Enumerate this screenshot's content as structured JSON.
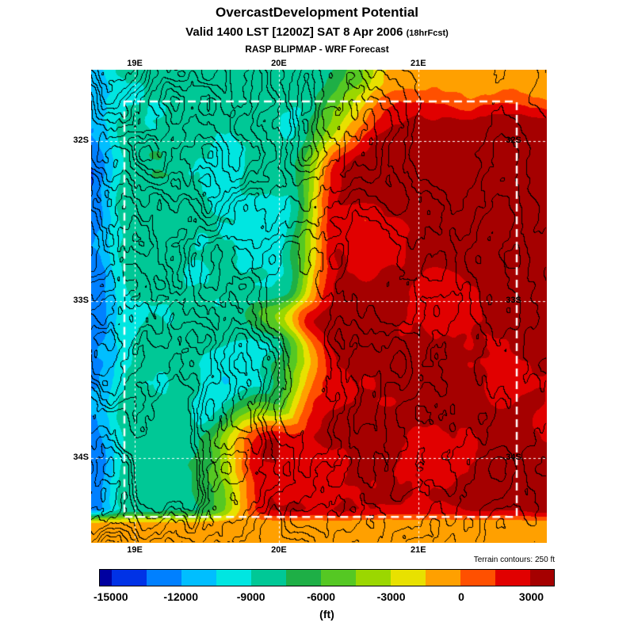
{
  "title": "OvercastDevelopment Potential",
  "valid_line": {
    "main": "Valid 1400 LST [1200Z] SAT 8 Apr 2006",
    "fcst": "(18hrFcst)"
  },
  "model_line": "RASP BLIPMAP - WRF Forecast",
  "terrain_note": "Terrain contours: 250 ft",
  "axes": {
    "lon_labels": [
      "19E",
      "20E",
      "21E"
    ],
    "lat_labels": [
      "32S",
      "33S",
      "34S"
    ]
  },
  "colorbar": {
    "unit": "(ft)",
    "tick_labels": [
      "-15000",
      "-12000",
      "-9000",
      "-6000",
      "-3000",
      "0",
      "3000"
    ],
    "tick_values": [
      -15000,
      -12000,
      -9000,
      -6000,
      -3000,
      0,
      3000
    ],
    "range": [
      -15500,
      4000
    ],
    "cell_edges": [
      -15500,
      -15000,
      -13500,
      -12000,
      -10500,
      -9000,
      -7500,
      -6000,
      -4500,
      -3000,
      -1500,
      0,
      1500,
      3000,
      4000
    ],
    "cell_colors": [
      "#0000a0",
      "#0032e6",
      "#0080ff",
      "#00beff",
      "#00e6e1",
      "#00c896",
      "#1eaf46",
      "#55c823",
      "#9bd700",
      "#e8e100",
      "#ffa000",
      "#ff5000",
      "#e10000",
      "#a50000"
    ]
  },
  "chart_data": {
    "type": "heatmap",
    "title": "OvercastDevelopment Potential",
    "units": "ft",
    "colorbar_ticks": [
      -15000,
      -12000,
      -9000,
      -6000,
      -3000,
      0,
      3000
    ],
    "colorbar_range": [
      -15500,
      4000
    ],
    "x_axis": {
      "label": "longitude",
      "ticks": [
        "19E",
        "20E",
        "21E"
      ]
    },
    "y_axis": {
      "label": "latitude",
      "ticks": [
        "32S",
        "33S",
        "34S"
      ]
    },
    "overlays": [
      "terrain contours every 250 ft (black)",
      "lat/lon graticule (white dashed)",
      "model domain box (white dashed)"
    ],
    "field_summary": "cyan/blue strip along west edge; green over west-central area; yellow transition band; strongly positive red over east and south-east; orange strip along the southern edge"
  }
}
